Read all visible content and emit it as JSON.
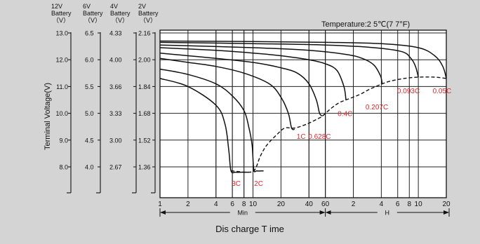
{
  "chart_data": {
    "type": "line",
    "temperature_label": "Temperature:2 5℃(7 7°F)",
    "ylabel": "Terminal Voltage(V)",
    "xlabel": "Dis charge T ime",
    "x_scale": "log",
    "x_range_minutes": [
      1,
      1200
    ],
    "ylim_12v": [
      7.2,
      13.0
    ],
    "grid": true,
    "x_segment_labels": {
      "min": "Min",
      "hour": "H"
    },
    "x_ticks": [
      {
        "label": "1",
        "minutes": 1
      },
      {
        "label": "2",
        "minutes": 2
      },
      {
        "label": "4",
        "minutes": 4
      },
      {
        "label": "6",
        "minutes": 6
      },
      {
        "label": "8",
        "minutes": 8
      },
      {
        "label": "10",
        "minutes": 10
      },
      {
        "label": "20",
        "minutes": 20
      },
      {
        "label": "40",
        "minutes": 40
      },
      {
        "label": "60",
        "minutes": 60
      },
      {
        "label": "2",
        "minutes": 120
      },
      {
        "label": "4",
        "minutes": 240
      },
      {
        "label": "6",
        "minutes": 360
      },
      {
        "label": "8",
        "minutes": 480
      },
      {
        "label": "10",
        "minutes": 600
      },
      {
        "label": "20",
        "minutes": 1200
      }
    ],
    "y_axes": [
      {
        "header": [
          "12V",
          "Battery",
          "（V）"
        ],
        "ticks": [
          "13.0",
          "12.0",
          "11.0",
          "10.0",
          "9.0",
          "8.0"
        ]
      },
      {
        "header": [
          "6V",
          "Battery",
          "（V）"
        ],
        "ticks": [
          "6.5",
          "6.0",
          "5.5",
          "5.0",
          "4.5",
          "4.0"
        ]
      },
      {
        "header": [
          "4V",
          "Battery",
          "（V）"
        ],
        "ticks": [
          "4.33",
          "4.00",
          "3.66",
          "3.33",
          "3.00",
          "2.67"
        ]
      },
      {
        "header": [
          "2V",
          "Battery",
          "（V）"
        ],
        "ticks": [
          "2.16",
          "2.00",
          "1.84",
          "1.68",
          "1.52",
          "1.36"
        ]
      }
    ],
    "y_tick_values_12v": [
      13.0,
      12.0,
      11.0,
      10.0,
      9.0,
      8.0
    ],
    "series": [
      {
        "label": "3C",
        "points": [
          [
            1,
            11.3
          ],
          [
            2,
            11.0
          ],
          [
            4,
            10.3
          ],
          [
            5,
            9.6
          ],
          [
            5.5,
            8.6
          ],
          [
            5.8,
            7.85
          ],
          [
            6.5,
            7.8
          ],
          [
            8,
            7.8
          ],
          [
            9,
            7.8
          ]
        ],
        "label_at": [
          6.6,
          7.4
        ]
      },
      {
        "label": "2C",
        "points": [
          [
            1,
            11.65
          ],
          [
            2,
            11.45
          ],
          [
            4,
            11.1
          ],
          [
            6,
            10.65
          ],
          [
            8,
            10.1
          ],
          [
            9,
            9.5
          ],
          [
            9.8,
            8.8
          ],
          [
            10.2,
            7.9
          ],
          [
            11,
            7.85
          ],
          [
            13,
            7.85
          ]
        ],
        "label_at": [
          11.5,
          7.4
        ]
      },
      {
        "label": "1C",
        "points": [
          [
            1,
            12.05
          ],
          [
            2,
            11.9
          ],
          [
            4,
            11.75
          ],
          [
            8,
            11.5
          ],
          [
            15,
            11.1
          ],
          [
            20,
            10.6
          ],
          [
            24,
            10.0
          ],
          [
            26,
            9.45
          ],
          [
            28,
            9.4
          ]
        ],
        "label_at": [
          33,
          9.15
        ]
      },
      {
        "label": "0.628C",
        "points": [
          [
            1,
            12.25
          ],
          [
            2,
            12.15
          ],
          [
            4,
            12.05
          ],
          [
            10,
            11.9
          ],
          [
            20,
            11.7
          ],
          [
            30,
            11.5
          ],
          [
            40,
            11.1
          ],
          [
            48,
            10.5
          ],
          [
            52,
            10.0
          ],
          [
            56,
            9.9
          ]
        ],
        "label_at": [
          52,
          9.15
        ]
      },
      {
        "label": "0.4C",
        "points": [
          [
            1,
            12.45
          ],
          [
            4,
            12.35
          ],
          [
            10,
            12.25
          ],
          [
            20,
            12.15
          ],
          [
            40,
            12.0
          ],
          [
            60,
            11.85
          ],
          [
            80,
            11.6
          ],
          [
            95,
            11.0
          ],
          [
            100,
            10.5
          ]
        ],
        "label_at": [
          98,
          10.0
        ]
      },
      {
        "label": "0.207C",
        "points": [
          [
            1,
            12.55
          ],
          [
            10,
            12.45
          ],
          [
            40,
            12.35
          ],
          [
            100,
            12.2
          ],
          [
            150,
            12.05
          ],
          [
            200,
            11.8
          ],
          [
            235,
            11.4
          ],
          [
            245,
            11.1
          ]
        ],
        "label_at": [
          215,
          10.25
        ]
      },
      {
        "label": "0.093C",
        "points": [
          [
            1,
            12.65
          ],
          [
            10,
            12.6
          ],
          [
            60,
            12.55
          ],
          [
            200,
            12.45
          ],
          [
            400,
            12.3
          ],
          [
            500,
            12.05
          ],
          [
            560,
            11.75
          ],
          [
            600,
            11.35
          ]
        ],
        "label_at": [
          470,
          10.85
        ]
      },
      {
        "label": "0.05C",
        "points": [
          [
            1,
            12.7
          ],
          [
            10,
            12.68
          ],
          [
            60,
            12.65
          ],
          [
            240,
            12.6
          ],
          [
            600,
            12.45
          ],
          [
            900,
            12.15
          ],
          [
            1100,
            11.75
          ],
          [
            1200,
            11.3
          ]
        ],
        "label_at": [
          1080,
          10.85
        ]
      }
    ],
    "end_voltage_curve": [
      [
        5.8,
        7.85
      ],
      [
        9,
        7.8
      ],
      [
        10.5,
        7.9
      ],
      [
        12,
        8.4
      ],
      [
        14,
        8.8
      ],
      [
        18,
        9.2
      ],
      [
        22,
        9.45
      ],
      [
        28,
        9.45
      ],
      [
        38,
        9.6
      ],
      [
        50,
        9.8
      ],
      [
        56,
        9.9
      ],
      [
        70,
        10.2
      ],
      [
        85,
        10.4
      ],
      [
        100,
        10.5
      ],
      [
        140,
        10.7
      ],
      [
        180,
        10.9
      ],
      [
        245,
        11.1
      ],
      [
        300,
        11.2
      ],
      [
        420,
        11.3
      ],
      [
        600,
        11.35
      ],
      [
        900,
        11.35
      ],
      [
        1200,
        11.3
      ]
    ]
  }
}
